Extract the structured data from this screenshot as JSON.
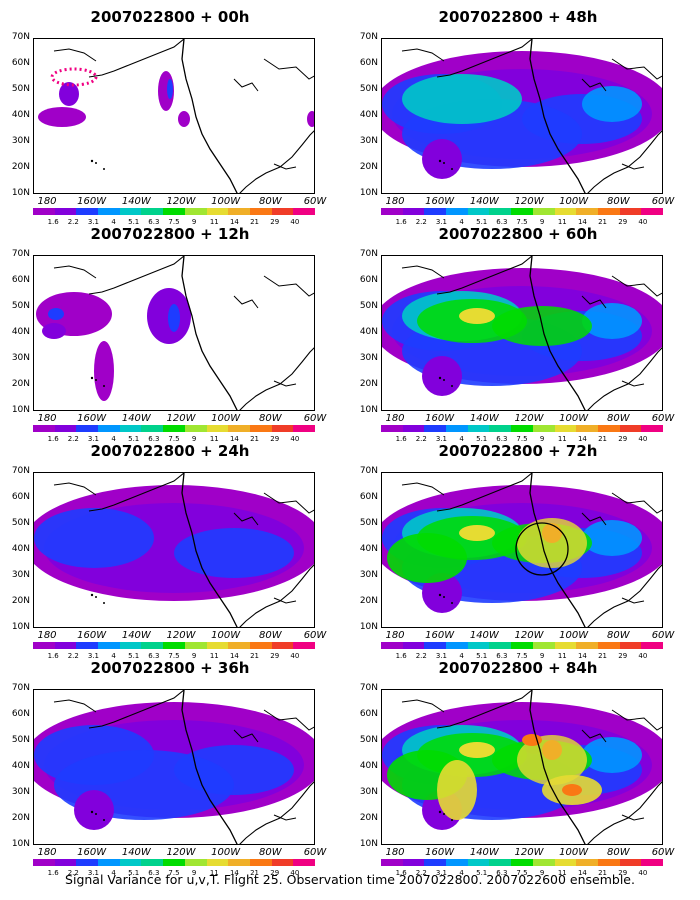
{
  "figure": {
    "caption": "Signal Variance for u,v,T. Flight 25. Observation time 2007022800. 2007022600 ensemble.",
    "y_labels": [
      "70N",
      "60N",
      "50N",
      "40N",
      "30N",
      "20N",
      "10N"
    ],
    "x_labels": [
      "180",
      "160W",
      "140W",
      "120W",
      "100W",
      "80W",
      "60W"
    ],
    "colorbar_levels": [
      "1.6",
      "2.2",
      "3.1",
      "4",
      "5.1",
      "6.3",
      "7.5",
      "9",
      "11",
      "14",
      "21",
      "29",
      "40"
    ],
    "colorbar_colors": [
      "#a000c8",
      "#8200dc",
      "#1e3cff",
      "#0096ff",
      "#00c8c8",
      "#00d28c",
      "#00dc00",
      "#a0e632",
      "#e6dc32",
      "#f0af28",
      "#fa7814",
      "#f03c28",
      "#f00082"
    ]
  },
  "panels": [
    {
      "title": "2007022800 + 00h",
      "intensity": 0
    },
    {
      "title": "2007022800 + 48h",
      "intensity": 4
    },
    {
      "title": "2007022800 + 12h",
      "intensity": 1
    },
    {
      "title": "2007022800 + 60h",
      "intensity": 5
    },
    {
      "title": "2007022800 + 24h",
      "intensity": 2
    },
    {
      "title": "2007022800 + 72h",
      "intensity": 6
    },
    {
      "title": "2007022800 + 36h",
      "intensity": 3
    },
    {
      "title": "2007022800 + 84h",
      "intensity": 7
    }
  ]
}
